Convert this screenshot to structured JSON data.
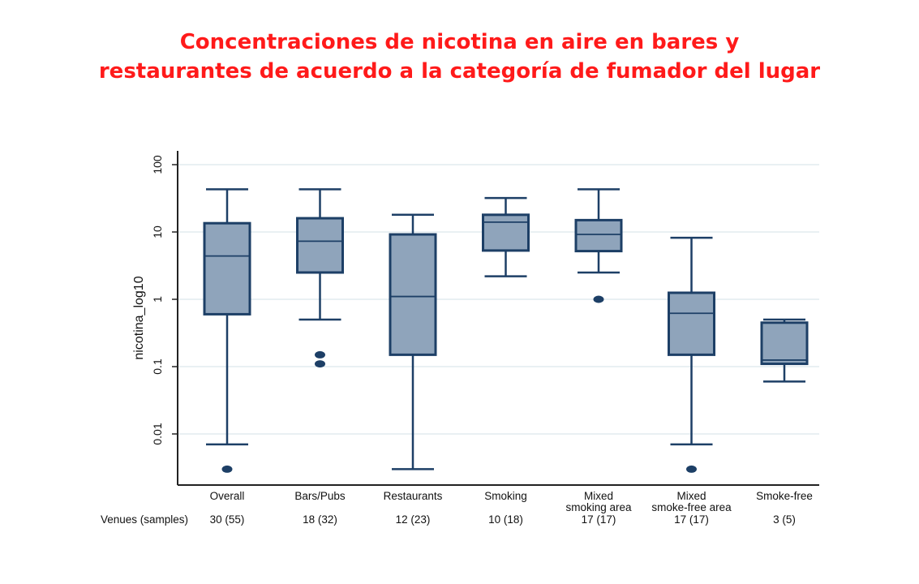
{
  "title": {
    "line1": "Concentraciones de nicotina en aire en bares y",
    "line2": "restaurantes de acuerdo a la categoría de fumador del lugar"
  },
  "colors": {
    "title": "#ff1a1a",
    "box_fill": "#8fa4bb",
    "box_stroke": "#1d3f66",
    "grid": "#dce6ec",
    "axis": "#222222"
  },
  "chart_data": {
    "type": "box",
    "ylabel": "nicotina_log10",
    "yscale": "log",
    "ylim": [
      0.001,
      150
    ],
    "yticks": [
      {
        "value": 100,
        "label": "100"
      },
      {
        "value": 10,
        "label": "10"
      },
      {
        "value": 1,
        "label": "1"
      },
      {
        "value": 0.1,
        "label": "0.1"
      },
      {
        "value": 0.01,
        "label": "0.01"
      }
    ],
    "grid": true,
    "row_label": "Venues (samples)",
    "categories": [
      {
        "label_lines": [
          "Overall"
        ],
        "count": "30 (55)",
        "whisker_low": 0.007,
        "q1": 0.6,
        "median": 4.4,
        "q3": 13.5,
        "whisker_high": 43,
        "outliers": [
          0.003
        ]
      },
      {
        "label_lines": [
          "Bars/Pubs"
        ],
        "count": "18 (32)",
        "whisker_low": 0.5,
        "q1": 2.5,
        "median": 7.3,
        "q3": 16,
        "whisker_high": 43,
        "outliers": [
          0.15,
          0.11
        ]
      },
      {
        "label_lines": [
          "Restaurants"
        ],
        "count": "12 (23)",
        "whisker_low": 0.003,
        "q1": 0.15,
        "median": 1.1,
        "q3": 9.2,
        "whisker_high": 18,
        "outliers": []
      },
      {
        "label_lines": [
          "Smoking"
        ],
        "count": "10 (18)",
        "whisker_low": 2.2,
        "q1": 5.3,
        "median": 14,
        "q3": 18,
        "whisker_high": 32,
        "outliers": []
      },
      {
        "label_lines": [
          "Mixed",
          "smoking area"
        ],
        "count": "17 (17)",
        "whisker_low": 2.5,
        "q1": 5.2,
        "median": 9.2,
        "q3": 15,
        "whisker_high": 43,
        "outliers": [
          1.0
        ]
      },
      {
        "label_lines": [
          "Mixed",
          "smoke-free area"
        ],
        "count": "17 (17)",
        "whisker_low": 0.007,
        "q1": 0.15,
        "median": 0.62,
        "q3": 1.25,
        "whisker_high": 8.2,
        "outliers": [
          0.003
        ]
      },
      {
        "label_lines": [
          "Smoke-free"
        ],
        "count": "3 (5)",
        "whisker_low": 0.06,
        "q1": 0.11,
        "median": 0.125,
        "q3": 0.45,
        "whisker_high": 0.5,
        "outliers": []
      }
    ]
  }
}
